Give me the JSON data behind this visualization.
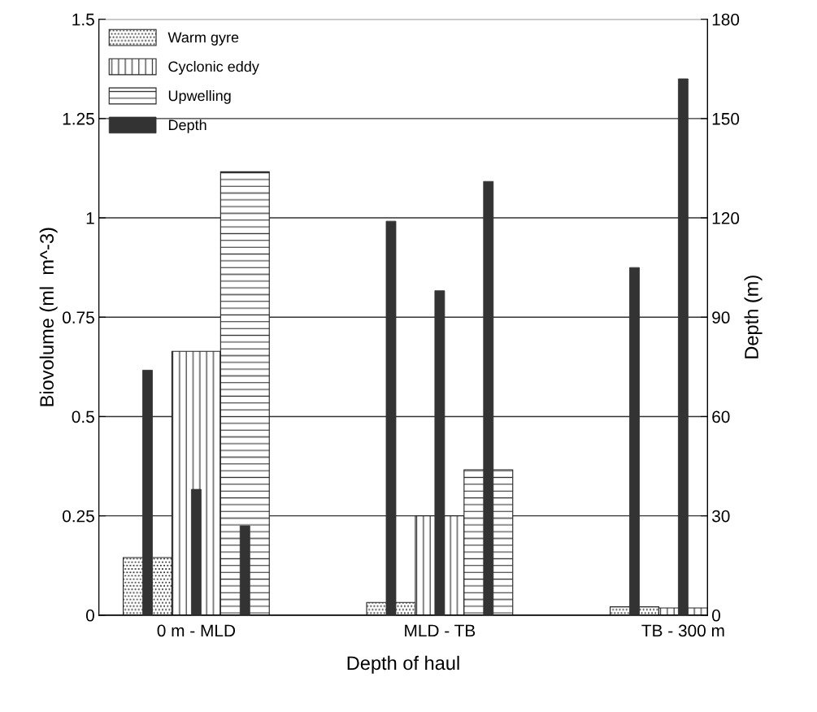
{
  "chart_data": {
    "type": "bar",
    "xlabel": "Depth of haul",
    "ylabel": "Biovolume (ml  m^-3)",
    "y2label": "Depth (m)",
    "categories": [
      "0 m - MLD",
      "MLD - TB",
      "TB - 300 m"
    ],
    "series": [
      {
        "name": "Warm gyre",
        "color": "#222222",
        "values": [
          0.145,
          0.032,
          0.021
        ]
      },
      {
        "name": "Cyclonic eddy",
        "color": "#222222",
        "values": [
          0.664,
          0.25,
          0.018
        ]
      },
      {
        "name": "Upwelling",
        "color": "#222222",
        "values": [
          1.116,
          0.366,
          null
        ]
      },
      {
        "name": "Depth",
        "color": "#333333",
        "axis": "y2",
        "values": [
          74,
          119,
          105
        ]
      },
      {
        "color": "#333333",
        "axis": "y2",
        "values": [
          38,
          98,
          162
        ]
      },
      {
        "color": "#333333",
        "axis": "y2",
        "values": [
          27,
          131,
          null
        ]
      }
    ],
    "ylim": [
      0,
      1.5
    ],
    "yticks": [
      0,
      0.25,
      0.5,
      0.75,
      1,
      1.25,
      1.5
    ],
    "y2lim": [
      0,
      180
    ],
    "y2ticks": [
      0,
      30,
      60,
      90,
      120,
      150,
      180
    ],
    "grid": "y",
    "legend": "top left"
  }
}
